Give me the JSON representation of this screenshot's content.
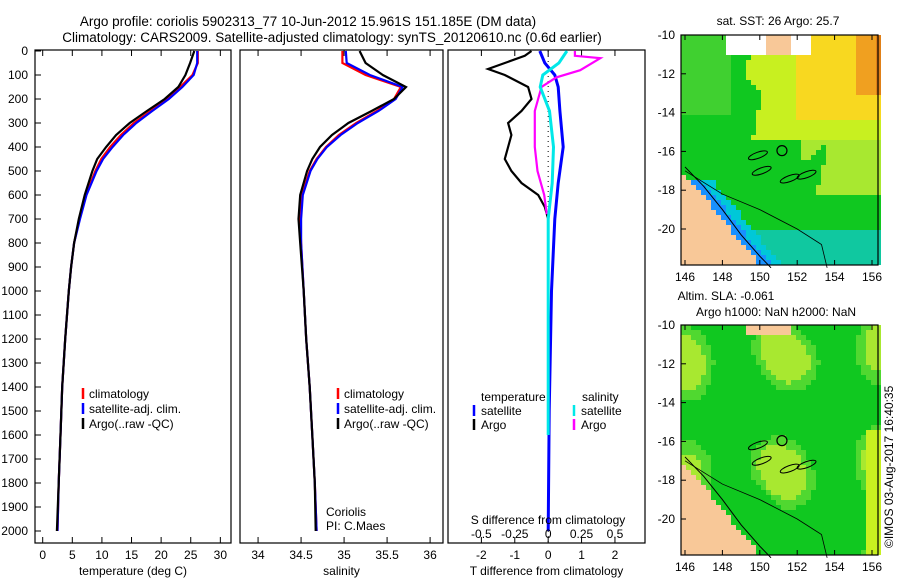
{
  "header": {
    "title_line1": "Argo profile: coriolis 5902313_77 10-Jun-2012 15.961S 151.185E (DM data)",
    "title_line2": "Climatology: CARS2009. Satellite-adjusted climatology: synTS_20120610.nc (0.6d earlier)"
  },
  "credit": "©IMOS 03-Aug-2017 16:40:35",
  "colors": {
    "climatology": "#ff0000",
    "satellite": "#0000ff",
    "argo": "#000000",
    "s_satellite": "#00e8e8",
    "s_argo": "#ff00ff"
  },
  "depth_axis": {
    "ticks": [
      0,
      100,
      200,
      300,
      400,
      500,
      600,
      700,
      800,
      900,
      1000,
      1100,
      1200,
      1300,
      1400,
      1500,
      1600,
      1700,
      1800,
      1900,
      2000
    ],
    "range": [
      0,
      2050
    ]
  },
  "chart_data": [
    {
      "type": "line",
      "id": "temperature",
      "xlabel": "temperature (deg C)",
      "ylabel": "depth",
      "xlim": [
        -1.3,
        31.8
      ],
      "xticks": [
        0,
        5,
        10,
        15,
        20,
        25,
        30
      ],
      "legend": [
        "climatology",
        "satellite-adj. clim.",
        "Argo(..raw -QC)"
      ],
      "depth": [
        0,
        50,
        100,
        150,
        200,
        250,
        300,
        350,
        400,
        450,
        500,
        600,
        700,
        800,
        900,
        1000,
        1200,
        1400,
        1600,
        1800,
        2000
      ],
      "series": [
        {
          "name": "climatology",
          "values": [
            26.2,
            26.2,
            25.3,
            23.2,
            21.0,
            18.2,
            15.4,
            13.2,
            11.4,
            9.9,
            8.9,
            7.3,
            6.2,
            5.3,
            4.8,
            4.4,
            3.8,
            3.3,
            3.0,
            2.7,
            2.5
          ]
        },
        {
          "name": "satellite-adj. clim.",
          "values": [
            26.1,
            26.1,
            25.5,
            23.6,
            21.3,
            18.5,
            15.8,
            13.6,
            11.8,
            10.2,
            9.1,
            7.4,
            6.3,
            5.3,
            4.8,
            4.4,
            3.8,
            3.3,
            3.0,
            2.7,
            2.5
          ]
        },
        {
          "name": "Argo(..raw -QC)",
          "values": [
            25.6,
            24.9,
            24.1,
            22.9,
            20.6,
            17.6,
            14.7,
            12.4,
            10.7,
            9.2,
            8.4,
            7.1,
            6.1,
            5.3,
            4.8,
            4.4,
            3.8,
            3.3,
            3.0,
            2.7,
            2.4
          ]
        }
      ]
    },
    {
      "type": "line",
      "id": "salinity",
      "xlabel": "salinity",
      "ylabel": "depth",
      "xlim": [
        33.79,
        36.15
      ],
      "xticks": [
        34,
        34.5,
        35,
        35.5,
        36
      ],
      "legend": [
        "climatology",
        "satellite-adj. clim.",
        "Argo(..raw -QC)"
      ],
      "annotation": [
        "Coriolis",
        "PI: C.Maes"
      ],
      "depth": [
        0,
        50,
        100,
        150,
        200,
        250,
        300,
        350,
        400,
        450,
        500,
        600,
        700,
        800,
        1000,
        1200,
        1400,
        1600,
        1800,
        2000
      ],
      "series": [
        {
          "name": "climatology",
          "values": [
            34.98,
            34.98,
            35.25,
            35.66,
            35.58,
            35.38,
            35.14,
            34.94,
            34.79,
            34.68,
            34.6,
            34.51,
            34.49,
            34.5,
            34.53,
            34.56,
            34.6,
            34.63,
            34.66,
            34.68
          ]
        },
        {
          "name": "satellite-adj. clim.",
          "values": [
            35.02,
            35.03,
            35.3,
            35.68,
            35.6,
            35.4,
            35.16,
            34.96,
            34.8,
            34.69,
            34.61,
            34.52,
            34.5,
            34.5,
            34.53,
            34.56,
            34.6,
            34.63,
            34.66,
            34.68
          ]
        },
        {
          "name": "Argo(..raw -QC)",
          "values": [
            35.18,
            35.25,
            35.45,
            35.72,
            35.58,
            35.32,
            35.05,
            34.86,
            34.72,
            34.63,
            34.57,
            34.49,
            34.47,
            34.49,
            34.53,
            34.56,
            34.6,
            34.63,
            34.66,
            34.67
          ]
        }
      ]
    },
    {
      "type": "line",
      "id": "differences",
      "xlabel": "T difference from climatology",
      "x2label": "S difference from climatology",
      "xlim": [
        -3,
        2.9
      ],
      "xticks": [
        -2,
        -1,
        0,
        1,
        2
      ],
      "x2ticks": [
        -0.5,
        -0.25,
        0,
        0.25,
        0.5
      ],
      "legend": {
        "temperature_title": "temperature",
        "salinity_title": "salinity",
        "items": [
          "satellite",
          "Argo",
          "satellite",
          "Argo"
        ]
      },
      "t_series": [
        {
          "name": "satellite",
          "depth": [
            0,
            50,
            100,
            150,
            250,
            400,
            550,
            700,
            1000,
            1500,
            2000
          ],
          "values": [
            -0.25,
            -0.1,
            0.2,
            0.3,
            0.35,
            0.45,
            0.3,
            0.2,
            0.1,
            0.03,
            0
          ]
        },
        {
          "name": "Argo",
          "depth": [
            0,
            20,
            50,
            75,
            100,
            150,
            200,
            250,
            300,
            350,
            400,
            450,
            500,
            550,
            600,
            650,
            700
          ],
          "values": [
            -0.5,
            -0.7,
            -1.3,
            -1.8,
            -1.3,
            -0.6,
            -0.5,
            -0.8,
            -1.2,
            -1.1,
            -1.2,
            -1.3,
            -1.1,
            -0.8,
            -0.3,
            -0.1,
            0
          ]
        }
      ],
      "s_series": [
        {
          "name": "satellite",
          "depth": [
            0,
            50,
            100,
            150,
            250,
            400,
            550,
            700,
            1000,
            1600
          ],
          "values": [
            0.14,
            0.08,
            -0.04,
            -0.06,
            0.01,
            0.04,
            0.03,
            0,
            0,
            0
          ]
        },
        {
          "name": "Argo",
          "depth": [
            0,
            20,
            30,
            80,
            110,
            150,
            250,
            400,
            500,
            600,
            680
          ],
          "values": [
            0.2,
            0.2,
            0.39,
            0.24,
            0.06,
            -0.05,
            -0.1,
            -0.1,
            -0.08,
            -0.03,
            -0.01
          ]
        }
      ]
    },
    {
      "type": "heatmap",
      "id": "sst-map",
      "title": "sat. SST: 26 Argo: 25.7",
      "xlim": [
        146,
        156.5
      ],
      "ylim": [
        -22,
        -10
      ],
      "xticks": [
        146,
        148,
        150,
        152,
        154,
        156
      ],
      "yticks": [
        -10,
        -12,
        -14,
        -16,
        -18,
        -20
      ],
      "argo_position": [
        151.185,
        -15.961
      ]
    },
    {
      "type": "heatmap",
      "id": "sla-map",
      "title_line1": "Altim. SLA: -0.061",
      "title_line2": "Argo h1000: NaN h2000: NaN",
      "xlim": [
        146,
        156.5
      ],
      "ylim": [
        -22,
        -10
      ],
      "xticks": [
        146,
        148,
        150,
        152,
        154,
        156
      ],
      "yticks": [
        -10,
        -12,
        -14,
        -16,
        -18,
        -20
      ],
      "argo_position": [
        151.185,
        -15.961
      ]
    }
  ]
}
